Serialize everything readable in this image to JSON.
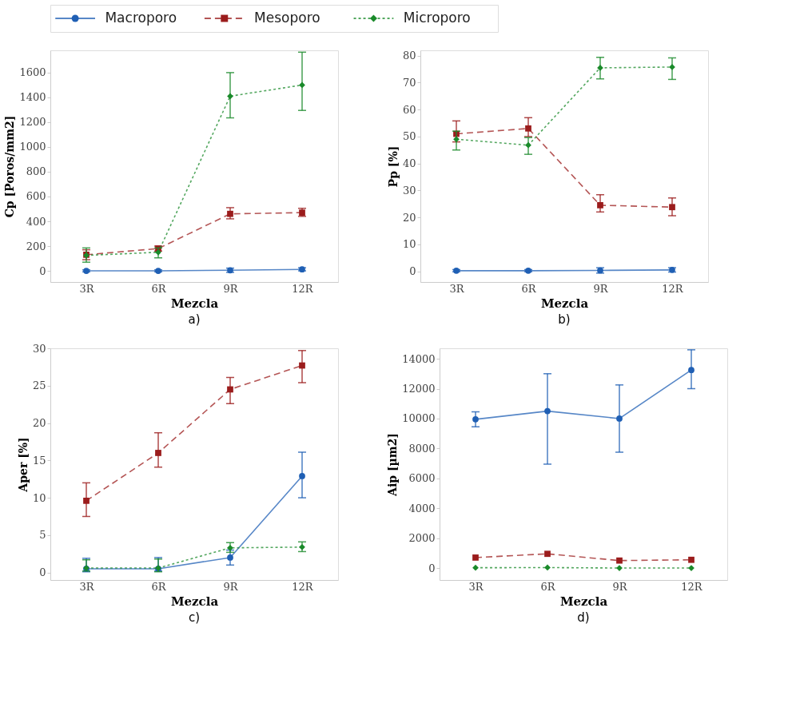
{
  "chart_data": [
    {
      "type": "line",
      "legend": "top",
      "grid": false,
      "xlabel": "Mezcla",
      "ylabel": "Cp [Poros/mm2]",
      "annotations": [
        "a)"
      ],
      "categories": [
        "3R",
        "6R",
        "9R",
        "12R"
      ],
      "ylim": [
        -90,
        1780
      ],
      "yticks": [
        0,
        200,
        400,
        600,
        800,
        1000,
        1200,
        1400,
        1600
      ],
      "series": [
        {
          "name": "Macroporo",
          "color": "#1f5fb4",
          "marker": "circle",
          "line_style": "solid",
          "values": [
            0,
            0,
            5,
            12
          ],
          "errors": [
            [
              -8,
              8
            ],
            [
              -8,
              8
            ],
            [
              -12,
              22
            ],
            [
              0,
              25
            ]
          ]
        },
        {
          "name": "Mesoporo",
          "color": "#9b1c1c",
          "marker": "square",
          "line_style": "dashed",
          "values": [
            130,
            180,
            460,
            470
          ],
          "errors": [
            [
              90,
              170
            ],
            [
              160,
              200
            ],
            [
              420,
              510
            ],
            [
              440,
              505
            ]
          ]
        },
        {
          "name": "Microporo",
          "color": "#1a8a2a",
          "marker": "diamond",
          "line_style": "dotted",
          "values": [
            125,
            150,
            1410,
            1500
          ],
          "errors": [
            [
              70,
              185
            ],
            [
              105,
              185
            ],
            [
              1235,
              1600
            ],
            [
              1295,
              1765
            ]
          ]
        }
      ]
    },
    {
      "type": "line",
      "grid": false,
      "xlabel": "Mezcla",
      "ylabel": "Pp [%]",
      "annotations": [
        "b)"
      ],
      "categories": [
        "3R",
        "6R",
        "9R",
        "12R"
      ],
      "ylim": [
        -4,
        82
      ],
      "yticks": [
        0,
        10,
        20,
        30,
        40,
        50,
        60,
        70,
        80
      ],
      "series": [
        {
          "name": "Macroporo",
          "color": "#1f5fb4",
          "marker": "circle",
          "line_style": "solid",
          "values": [
            0.2,
            0.2,
            0.3,
            0.5
          ],
          "errors": [
            [
              -0.2,
              0.6
            ],
            [
              -0.2,
              0.6
            ],
            [
              -0.7,
              1.3
            ],
            [
              -0.3,
              1.3
            ]
          ]
        },
        {
          "name": "Mesoporo",
          "color": "#9b1c1c",
          "marker": "square",
          "line_style": "dashed",
          "values": [
            51,
            53,
            24.5,
            23.8
          ],
          "errors": [
            [
              48,
              55.8
            ],
            [
              50,
              57
            ],
            [
              22,
              28.4
            ],
            [
              20.6,
              27.2
            ]
          ]
        },
        {
          "name": "Microporo",
          "color": "#1a8a2a",
          "marker": "diamond",
          "line_style": "dotted",
          "values": [
            49,
            46.8,
            75.5,
            75.8
          ],
          "errors": [
            [
              45,
              52
            ],
            [
              43.4,
              49.6
            ],
            [
              71.4,
              79.4
            ],
            [
              71.2,
              79.2
            ]
          ]
        }
      ]
    },
    {
      "type": "line",
      "grid": false,
      "xlabel": "Mezcla",
      "ylabel": "Aper [%]",
      "annotations": [
        "c)"
      ],
      "categories": [
        "3R",
        "6R",
        "9R",
        "12R"
      ],
      "ylim": [
        -1,
        30
      ],
      "yticks": [
        0,
        5,
        10,
        15,
        20,
        25,
        30
      ],
      "series": [
        {
          "name": "Macroporo",
          "color": "#1f5fb4",
          "marker": "circle",
          "line_style": "solid",
          "values": [
            0.5,
            0.5,
            2,
            12.9
          ],
          "errors": [
            [
              0.1,
              1.9
            ],
            [
              0.2,
              2
            ],
            [
              1,
              3
            ],
            [
              10,
              16.1
            ]
          ]
        },
        {
          "name": "Mesoporo",
          "color": "#9b1c1c",
          "marker": "square",
          "line_style": "dashed",
          "values": [
            9.6,
            16,
            24.5,
            27.7
          ],
          "errors": [
            [
              7.5,
              12
            ],
            [
              14.1,
              18.7
            ],
            [
              22.6,
              26.1
            ],
            [
              25.4,
              29.7
            ]
          ]
        },
        {
          "name": "Microporo",
          "color": "#1a8a2a",
          "marker": "diamond",
          "line_style": "dotted",
          "values": [
            0.6,
            0.6,
            3.3,
            3.4
          ],
          "errors": [
            [
              0.2,
              1.7
            ],
            [
              0.1,
              1.8
            ],
            [
              2.7,
              4
            ],
            [
              2.8,
              4.1
            ]
          ]
        }
      ]
    },
    {
      "type": "line",
      "grid": false,
      "xlabel": "Mezcla",
      "ylabel": "Aip [µm2]",
      "annotations": [
        "d)"
      ],
      "categories": [
        "3R",
        "6R",
        "9R",
        "12R"
      ],
      "ylim": [
        -800,
        14700
      ],
      "yticks": [
        0,
        2000,
        4000,
        6000,
        8000,
        10000,
        12000,
        14000
      ],
      "series": [
        {
          "name": "Macroporo",
          "color": "#1f5fb4",
          "marker": "circle",
          "line_style": "solid",
          "values": [
            9950,
            10500,
            10000,
            13250
          ],
          "errors": [
            [
              9450,
              10450
            ],
            [
              6950,
              13000
            ],
            [
              7750,
              12250
            ],
            [
              12000,
              14600
            ]
          ]
        },
        {
          "name": "Mesoporo",
          "color": "#9b1c1c",
          "marker": "square",
          "line_style": "dashed",
          "values": [
            700,
            950,
            500,
            550
          ]
        },
        {
          "name": "Microporo",
          "color": "#1a8a2a",
          "marker": "diamond",
          "line_style": "dotted",
          "values": [
            20,
            30,
            0,
            0
          ]
        }
      ]
    }
  ]
}
